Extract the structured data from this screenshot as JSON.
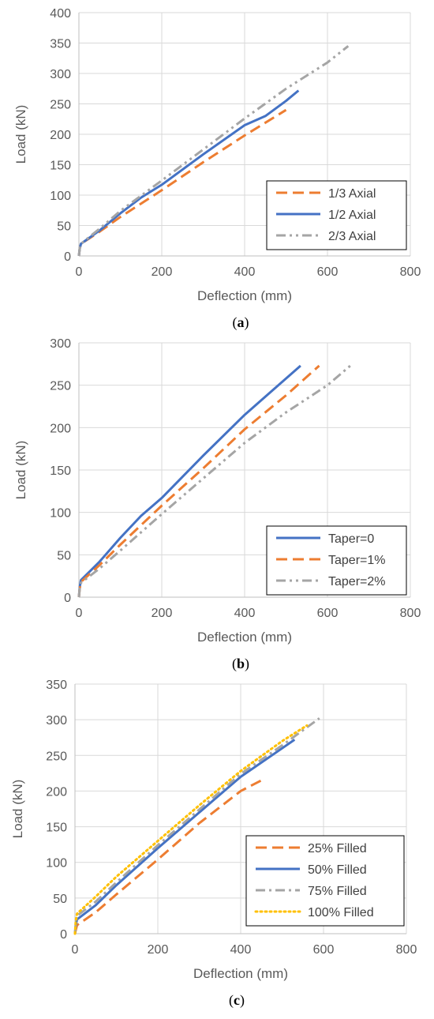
{
  "chart_data": [
    {
      "type": "line",
      "caption_letter": "a",
      "xlabel": "Deflection (mm)",
      "ylabel": "Load (kN)",
      "xlim": [
        0,
        800
      ],
      "ylim": [
        0,
        400
      ],
      "xticks": [
        0,
        200,
        400,
        600,
        800
      ],
      "yticks": [
        0,
        50,
        100,
        150,
        200,
        250,
        300,
        350,
        400
      ],
      "grid": true,
      "legend_position": "bottom-right",
      "series": [
        {
          "name": "1/3 Axial",
          "color": "#ed7d31",
          "style": "dash",
          "x": [
            0,
            2,
            5,
            50,
            100,
            200,
            300,
            400,
            500
          ],
          "y": [
            0,
            12,
            20,
            40,
            64,
            108,
            154,
            198,
            240
          ]
        },
        {
          "name": "1/2 Axial",
          "color": "#4472c4",
          "style": "solid",
          "x": [
            0,
            2,
            5,
            50,
            100,
            150,
            200,
            300,
            400,
            450,
            500,
            530
          ],
          "y": [
            0,
            12,
            20,
            42,
            70,
            96,
            117,
            167,
            215,
            230,
            255,
            272
          ]
        },
        {
          "name": "2/3 Axial",
          "color": "#a5a5a5",
          "style": "dashdotdot",
          "x": [
            0,
            2,
            5,
            50,
            100,
            200,
            300,
            400,
            500,
            600,
            650
          ],
          "y": [
            0,
            12,
            20,
            45,
            74,
            124,
            175,
            226,
            275,
            318,
            345
          ]
        }
      ]
    },
    {
      "type": "line",
      "caption_letter": "b",
      "xlabel": "Deflection (mm)",
      "ylabel": "Load (kN)",
      "xlim": [
        0,
        800
      ],
      "ylim": [
        0,
        300
      ],
      "xticks": [
        0,
        200,
        400,
        600,
        800
      ],
      "yticks": [
        0,
        50,
        100,
        150,
        200,
        250,
        300
      ],
      "grid": true,
      "legend_position": "bottom-right",
      "series": [
        {
          "name": "Taper=0",
          "color": "#4472c4",
          "style": "solid",
          "x": [
            0,
            2,
            5,
            50,
            100,
            150,
            200,
            300,
            400,
            500,
            535
          ],
          "y": [
            0,
            12,
            20,
            42,
            70,
            96,
            117,
            167,
            215,
            258,
            273
          ]
        },
        {
          "name": "Taper=1%",
          "color": "#ed7d31",
          "style": "dash",
          "x": [
            0,
            2,
            5,
            50,
            100,
            200,
            300,
            400,
            500,
            580
          ],
          "y": [
            0,
            10,
            18,
            38,
            62,
            108,
            152,
            198,
            238,
            273
          ]
        },
        {
          "name": "Taper=2%",
          "color": "#a5a5a5",
          "style": "dashdotdot",
          "x": [
            0,
            2,
            5,
            50,
            100,
            200,
            300,
            400,
            500,
            600,
            660
          ],
          "y": [
            0,
            10,
            17,
            34,
            55,
            98,
            140,
            182,
            218,
            250,
            275
          ]
        }
      ]
    },
    {
      "type": "line",
      "caption_letter": "c",
      "xlabel": "Deflection (mm)",
      "ylabel": "Load (kN)",
      "xlim": [
        0,
        800
      ],
      "ylim": [
        0,
        350
      ],
      "xticks": [
        0,
        200,
        400,
        600,
        800
      ],
      "yticks": [
        0,
        50,
        100,
        150,
        200,
        250,
        300,
        350
      ],
      "grid": true,
      "legend_position": "bottom-right",
      "series": [
        {
          "name": "25% Filled",
          "color": "#ed7d31",
          "style": "dash",
          "x": [
            0,
            2,
            5,
            50,
            100,
            200,
            300,
            400,
            460
          ],
          "y": [
            0,
            5,
            12,
            30,
            55,
            104,
            155,
            200,
            218
          ]
        },
        {
          "name": "50% Filled",
          "color": "#4472c4",
          "style": "solid",
          "x": [
            0,
            2,
            5,
            50,
            100,
            200,
            300,
            400,
            500,
            530
          ],
          "y": [
            0,
            12,
            20,
            40,
            68,
            120,
            170,
            220,
            260,
            272
          ]
        },
        {
          "name": "75% Filled",
          "color": "#a5a5a5",
          "style": "dashdot",
          "x": [
            0,
            2,
            5,
            50,
            100,
            200,
            300,
            400,
            500,
            590
          ],
          "y": [
            0,
            15,
            25,
            45,
            72,
            124,
            174,
            224,
            264,
            302
          ]
        },
        {
          "name": "100% Filled",
          "color": "#ffc000",
          "style": "dot",
          "x": [
            0,
            2,
            5,
            50,
            100,
            200,
            300,
            400,
            500,
            560
          ],
          "y": [
            0,
            18,
            28,
            52,
            80,
            130,
            180,
            228,
            270,
            292
          ]
        }
      ]
    }
  ]
}
